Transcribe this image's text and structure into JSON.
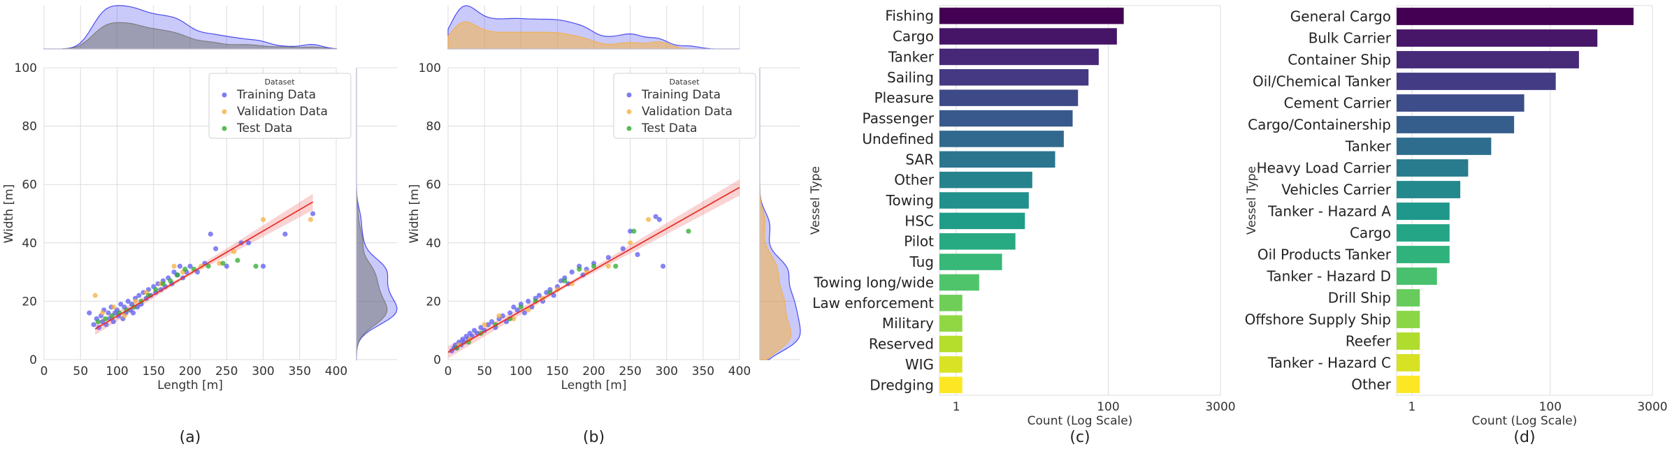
{
  "chart_data": [
    {
      "panel_label": "(a)",
      "type": "scatter",
      "xlabel": "Length [m]",
      "ylabel": "Width [m]",
      "xlim": [
        0,
        400
      ],
      "ylim": [
        0,
        100
      ],
      "xticks": [
        "0",
        "50",
        "100",
        "150",
        "200",
        "250",
        "300",
        "350",
        "400"
      ],
      "yticks": [
        "0",
        "20",
        "40",
        "60",
        "80",
        "100"
      ],
      "legend": {
        "title": "Dataset",
        "entries": [
          "Training Data",
          "Validation Data",
          "Test Data"
        ],
        "colors": [
          "#5b5bf0",
          "#f5b041",
          "#2eaa2e"
        ]
      },
      "regression": {
        "x": [
          70,
          368
        ],
        "y": [
          10.5,
          54
        ]
      },
      "marginal_colors": {
        "outer": "#4b4bf0",
        "inner": "#777777"
      },
      "series": [
        {
          "name": "Training Data",
          "points": [
            [
              62,
              16
            ],
            [
              68,
              12
            ],
            [
              72,
              14
            ],
            [
              75,
              11
            ],
            [
              78,
              15
            ],
            [
              80,
              13
            ],
            [
              82,
              17
            ],
            [
              85,
              12
            ],
            [
              88,
              16
            ],
            [
              90,
              14
            ],
            [
              92,
              18
            ],
            [
              95,
              13
            ],
            [
              97,
              16
            ],
            [
              100,
              17
            ],
            [
              102,
              15
            ],
            [
              105,
              19
            ],
            [
              108,
              14
            ],
            [
              110,
              18
            ],
            [
              112,
              16
            ],
            [
              115,
              20
            ],
            [
              118,
              17
            ],
            [
              120,
              19
            ],
            [
              122,
              16
            ],
            [
              125,
              21
            ],
            [
              128,
              18
            ],
            [
              130,
              22
            ],
            [
              133,
              19
            ],
            [
              136,
              23
            ],
            [
              140,
              21
            ],
            [
              143,
              24
            ],
            [
              146,
              22
            ],
            [
              150,
              25
            ],
            [
              153,
              23
            ],
            [
              156,
              26
            ],
            [
              160,
              24
            ],
            [
              163,
              27
            ],
            [
              166,
              25
            ],
            [
              170,
              28
            ],
            [
              175,
              26
            ],
            [
              178,
              30
            ],
            [
              182,
              29
            ],
            [
              186,
              32
            ],
            [
              190,
              28
            ],
            [
              195,
              30
            ],
            [
              200,
              32
            ],
            [
              210,
              30
            ],
            [
              220,
              33
            ],
            [
              228,
              43
            ],
            [
              235,
              38
            ],
            [
              250,
              32
            ],
            [
              270,
              40
            ],
            [
              280,
              40
            ],
            [
              300,
              32
            ],
            [
              330,
              43
            ],
            [
              368,
              50
            ]
          ]
        },
        {
          "name": "Validation Data",
          "points": [
            [
              70,
              22
            ],
            [
              80,
              16
            ],
            [
              95,
              18
            ],
            [
              110,
              15
            ],
            [
              125,
              20
            ],
            [
              140,
              23
            ],
            [
              160,
              26
            ],
            [
              178,
              32
            ],
            [
              190,
              30
            ],
            [
              215,
              32
            ],
            [
              240,
              33
            ],
            [
              260,
              37
            ],
            [
              300,
              48
            ],
            [
              365,
              48
            ]
          ]
        },
        {
          "name": "Test Data",
          "points": [
            [
              74,
              13
            ],
            [
              84,
              14
            ],
            [
              93,
              15
            ],
            [
              103,
              16
            ],
            [
              113,
              17
            ],
            [
              123,
              18
            ],
            [
              133,
              20
            ],
            [
              143,
              22
            ],
            [
              153,
              24
            ],
            [
              163,
              26
            ],
            [
              173,
              27
            ],
            [
              183,
              29
            ],
            [
              193,
              31
            ],
            [
              205,
              31
            ],
            [
              225,
              32
            ],
            [
              245,
              33
            ],
            [
              265,
              34
            ],
            [
              290,
              32
            ]
          ]
        }
      ]
    },
    {
      "panel_label": "(b)",
      "type": "scatter",
      "xlabel": "Length [m]",
      "ylabel": "Width [m]",
      "xlim": [
        0,
        400
      ],
      "ylim": [
        0,
        100
      ],
      "xticks": [
        "0",
        "50",
        "100",
        "150",
        "200",
        "250",
        "300",
        "350",
        "400"
      ],
      "yticks": [
        "0",
        "20",
        "40",
        "60",
        "80",
        "100"
      ],
      "legend": {
        "title": "Dataset",
        "entries": [
          "Training Data",
          "Validation Data",
          "Test Data"
        ],
        "colors": [
          "#5b5bf0",
          "#f5b041",
          "#2eaa2e"
        ]
      },
      "regression": {
        "x": [
          0,
          400
        ],
        "y": [
          2.5,
          59
        ]
      },
      "marginal_colors": {
        "outer": "#4b4bf0",
        "inner": "#f5b041"
      },
      "series": [
        {
          "name": "Training Data",
          "points": [
            [
              5,
              3
            ],
            [
              8,
              4
            ],
            [
              10,
              5
            ],
            [
              12,
              4
            ],
            [
              15,
              6
            ],
            [
              18,
              5
            ],
            [
              20,
              7
            ],
            [
              22,
              6
            ],
            [
              25,
              8
            ],
            [
              28,
              7
            ],
            [
              30,
              9
            ],
            [
              33,
              8
            ],
            [
              36,
              10
            ],
            [
              40,
              9
            ],
            [
              45,
              11
            ],
            [
              50,
              10
            ],
            [
              55,
              12
            ],
            [
              60,
              13
            ],
            [
              65,
              11
            ],
            [
              70,
              14
            ],
            [
              75,
              15
            ],
            [
              80,
              13
            ],
            [
              85,
              16
            ],
            [
              90,
              18
            ],
            [
              95,
              17
            ],
            [
              100,
              19
            ],
            [
              105,
              16
            ],
            [
              110,
              20
            ],
            [
              115,
              18
            ],
            [
              120,
              21
            ],
            [
              125,
              22
            ],
            [
              130,
              20
            ],
            [
              135,
              23
            ],
            [
              140,
              24
            ],
            [
              145,
              22
            ],
            [
              150,
              25
            ],
            [
              155,
              27
            ],
            [
              160,
              28
            ],
            [
              165,
              26
            ],
            [
              170,
              30
            ],
            [
              180,
              32
            ],
            [
              185,
              29
            ],
            [
              190,
              31
            ],
            [
              200,
              33
            ],
            [
              220,
              35
            ],
            [
              240,
              38
            ],
            [
              250,
              44
            ],
            [
              260,
              36
            ],
            [
              285,
              49
            ],
            [
              290,
              48
            ],
            [
              295,
              32
            ]
          ]
        },
        {
          "name": "Validation Data",
          "points": [
            [
              15,
              5
            ],
            [
              30,
              7
            ],
            [
              50,
              12
            ],
            [
              70,
              15
            ],
            [
              90,
              14
            ],
            [
              110,
              17
            ],
            [
              130,
              21
            ],
            [
              150,
              24
            ],
            [
              170,
              26
            ],
            [
              190,
              30
            ],
            [
              220,
              32
            ],
            [
              250,
              40
            ],
            [
              275,
              48
            ]
          ]
        },
        {
          "name": "Test Data",
          "points": [
            [
              12,
              4
            ],
            [
              28,
              6
            ],
            [
              45,
              9
            ],
            [
              65,
              12
            ],
            [
              85,
              14
            ],
            [
              100,
              18
            ],
            [
              120,
              20
            ],
            [
              140,
              23
            ],
            [
              160,
              27
            ],
            [
              180,
              31
            ],
            [
              200,
              32
            ],
            [
              230,
              32
            ],
            [
              255,
              44
            ],
            [
              330,
              44
            ]
          ]
        }
      ]
    },
    {
      "panel_label": "(c)",
      "type": "bar",
      "orientation": "horizontal",
      "xscale": "log",
      "xlabel": "Count (Log Scale)",
      "ylabel": "Vessel Type",
      "xlim": [
        0.6,
        3000
      ],
      "xticks": [
        1,
        100,
        3000
      ],
      "xtick_labels": [
        "1",
        "100",
        "3000"
      ],
      "categories": [
        "Fishing",
        "Cargo",
        "Tanker",
        "Sailing",
        "Pleasure",
        "Passenger",
        "Undefined",
        "SAR",
        "Other",
        "Towing",
        "HSC",
        "Pilot",
        "Tug",
        "Towing long/wide",
        "Law enforcement",
        "Military",
        "Reserved",
        "WIG",
        "Dredging"
      ],
      "values": [
        160,
        130,
        75,
        55,
        40,
        34,
        26,
        20,
        10,
        9,
        8,
        6,
        4,
        2,
        1.2,
        1.2,
        1.2,
        1.2,
        1.2
      ]
    },
    {
      "panel_label": "(d)",
      "type": "bar",
      "orientation": "horizontal",
      "xscale": "log",
      "xlabel": "Count (Log Scale)",
      "ylabel": "Vessel Type",
      "xlim": [
        0.6,
        3000
      ],
      "xticks": [
        1,
        100,
        3000
      ],
      "xtick_labels": [
        "1",
        "100",
        "3000"
      ],
      "categories": [
        "General Cargo",
        "Bulk Carrier",
        "Container Ship",
        "Oil/Chemical Tanker",
        "Cement Carrier",
        "Cargo/Containership",
        "Tanker",
        "Heavy Load Carrier",
        "Vehicles Carrier",
        "Tanker - Hazard A",
        "Cargo",
        "Oil Products Tanker",
        "Tanker - Hazard D",
        "Drill Ship",
        "Offshore Supply Ship",
        "Reefer",
        "Tanker - Hazard C",
        "Other"
      ],
      "values": [
        1600,
        480,
        260,
        120,
        42,
        30,
        14,
        6.5,
        5,
        3.5,
        3.5,
        3.5,
        2.3,
        1.3,
        1.3,
        1.3,
        1.3,
        1.3
      ]
    }
  ]
}
